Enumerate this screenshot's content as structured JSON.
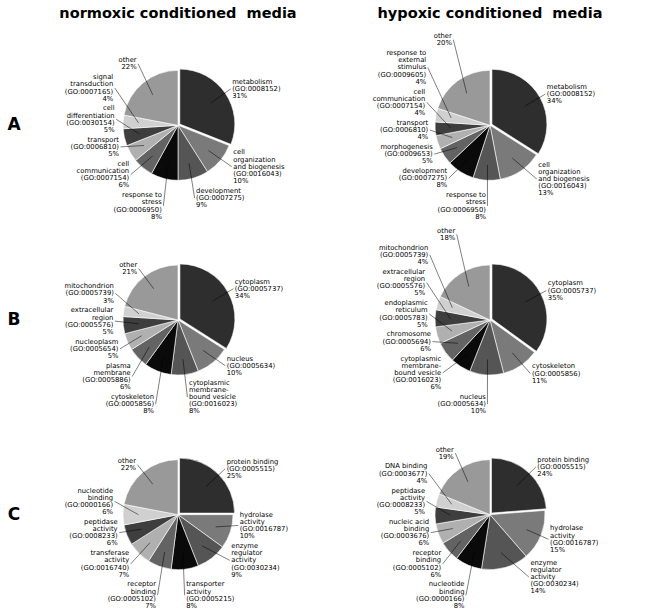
{
  "chart_data": [
    {
      "type": "pie",
      "title": "normoxic conditioned  media",
      "annotations": [
        "A"
      ],
      "categories": [
        "metabolism\n(GO:0008152)",
        "cell\norganization\nand biogenesis\n(GO:0016043)",
        "development\n(GO:0007275)",
        "response to\nstress\n(GO:0006950)",
        "cell\ncommunication\n(GO:0007154)",
        "transport\n(GO:0006810)",
        "cell\ndifferentiation\n(GO:0030154)",
        "signal\ntransduction\n(GO:0007165)",
        "other"
      ],
      "values": [
        31,
        10,
        9,
        8,
        6,
        5,
        5,
        4,
        22
      ],
      "value_labels": [
        "31%",
        "10%",
        "9%",
        "8%",
        "6%",
        "5%",
        "5%",
        "4%",
        "22%"
      ],
      "colors": [
        "#2e2e2e",
        "#7a7a7a",
        "#555555",
        "#0a0a0a",
        "#636363",
        "#b0b0b0",
        "#3e3e3e",
        "#d0d0d0",
        "#999999"
      ]
    },
    {
      "type": "pie",
      "title": "hypoxic conditioned  media",
      "categories": [
        "metabolism\n(GO:0008152)",
        "cell\norganization\nand biogenesis\n(GO:0016043)",
        "response to\nstress\n(GO:0006950)",
        "development\n(GO:0007275)",
        "morphogenesis\n(GO:0009653)",
        "transport\n(GO:0006810)",
        "cell\ncommunication\n(GO:0007154)",
        "response to\nexternal\nstimulus\n(GO:0009605)",
        "other"
      ],
      "values": [
        34,
        13,
        8,
        8,
        5,
        4,
        4,
        4,
        20
      ],
      "value_labels": [
        "34%",
        "13%",
        "8%",
        "8%",
        "5%",
        "4%",
        "4%",
        "4%",
        "20%"
      ],
      "colors": [
        "#2e2e2e",
        "#7a7a7a",
        "#555555",
        "#0a0a0a",
        "#636363",
        "#b0b0b0",
        "#3e3e3e",
        "#d0d0d0",
        "#999999"
      ]
    },
    {
      "type": "pie",
      "annotations": [
        "B"
      ],
      "categories": [
        "cytoplasm\n(GO:0005737)",
        "nucleus\n(GO:0005634)",
        "cytoplasmic\nmembrane-\nbound vesicle\n(GO:0016023)",
        "cytoskeleton\n(GO:0005856)",
        "plasma\nmembrane\n(GO:0005886)",
        "nucleoplasm\n(GO:0005654)",
        "extracellular\nregion\n(GO:0005576)",
        "mitochondrion\n(GO:0005739)",
        "other"
      ],
      "values": [
        34,
        10,
        8,
        8,
        6,
        5,
        5,
        3,
        21
      ],
      "value_labels": [
        "34%",
        "10%",
        "8%",
        "8%",
        "6%",
        "5%",
        "5%",
        "3%",
        "21%"
      ],
      "colors": [
        "#2e2e2e",
        "#7a7a7a",
        "#555555",
        "#0a0a0a",
        "#636363",
        "#b0b0b0",
        "#3e3e3e",
        "#d0d0d0",
        "#999999"
      ]
    },
    {
      "type": "pie",
      "categories": [
        "cytoplasm\n(GO:0005737)",
        "cytoskeleton\n(GO:0005856)",
        "nucleus\n(GO:0005634)",
        "cytoplasmic\nmembrane-\nbound vesicle\n(GO:0016023)",
        "chromosome\n(GO:0005694)",
        "endoplasmic\nreticulum\n(GO:0005783)",
        "extracellular\nregion\n(GO:0005576)",
        "mitochondrion\n(GO:0005739)",
        "other"
      ],
      "values": [
        35,
        11,
        10,
        6,
        6,
        5,
        5,
        4,
        18
      ],
      "value_labels": [
        "35%",
        "11%",
        "10%",
        "6%",
        "6%",
        "5%",
        "5%",
        "4%",
        "18%"
      ],
      "colors": [
        "#2e2e2e",
        "#7a7a7a",
        "#555555",
        "#0a0a0a",
        "#636363",
        "#b0b0b0",
        "#3e3e3e",
        "#d0d0d0",
        "#999999"
      ]
    },
    {
      "type": "pie",
      "annotations": [
        "C"
      ],
      "categories": [
        "protein binding\n(GO:0005515)",
        "hydrolase\nactivity\n(GO:0016787)",
        "enzyme\nregulator\nactivity\n(GO:0030234)",
        "transporter\nactivity\n(GO:0005215)",
        "receptor\nbinding\n(GO:0005102)",
        "transferase\nactivity\n(GO:0016740)",
        "peptidase\nactivity\n(GO:0008233)",
        "nucleotide\nbinding\n(GO:0000166)",
        "other"
      ],
      "values": [
        25,
        10,
        9,
        8,
        7,
        7,
        6,
        6,
        22
      ],
      "value_labels": [
        "25%",
        "10%",
        "9%",
        "8%",
        "7%",
        "7%",
        "6%",
        "6%",
        "22%"
      ],
      "colors": [
        "#2e2e2e",
        "#7a7a7a",
        "#555555",
        "#0a0a0a",
        "#636363",
        "#b0b0b0",
        "#3e3e3e",
        "#d0d0d0",
        "#999999"
      ]
    },
    {
      "type": "pie",
      "categories": [
        "protein binding\n(GO:0005515)",
        "hydrolase\nactivity\n(GO:0016787)",
        "enzyme\nregulator\nactivity\n(GO:0030234)",
        "nucleotide\nbinding\n(GO:0000166)",
        "receptor\nbinding\n(GO:0005102)",
        "nucleic acid\nbinding\n(GO:0003676)",
        "peptidase\nactivity\n(GO:0008233)",
        "DNA binding\n(GO:0003677)",
        "other"
      ],
      "values": [
        24,
        15,
        14,
        8,
        6,
        6,
        5,
        4,
        19
      ],
      "value_labels": [
        "24%",
        "15%",
        "14%",
        "8%",
        "6%",
        "6%",
        "5%",
        "4%",
        "19%"
      ],
      "colors": [
        "#2e2e2e",
        "#7a7a7a",
        "#555555",
        "#0a0a0a",
        "#636363",
        "#b0b0b0",
        "#3e3e3e",
        "#d0d0d0",
        "#999999"
      ]
    }
  ]
}
